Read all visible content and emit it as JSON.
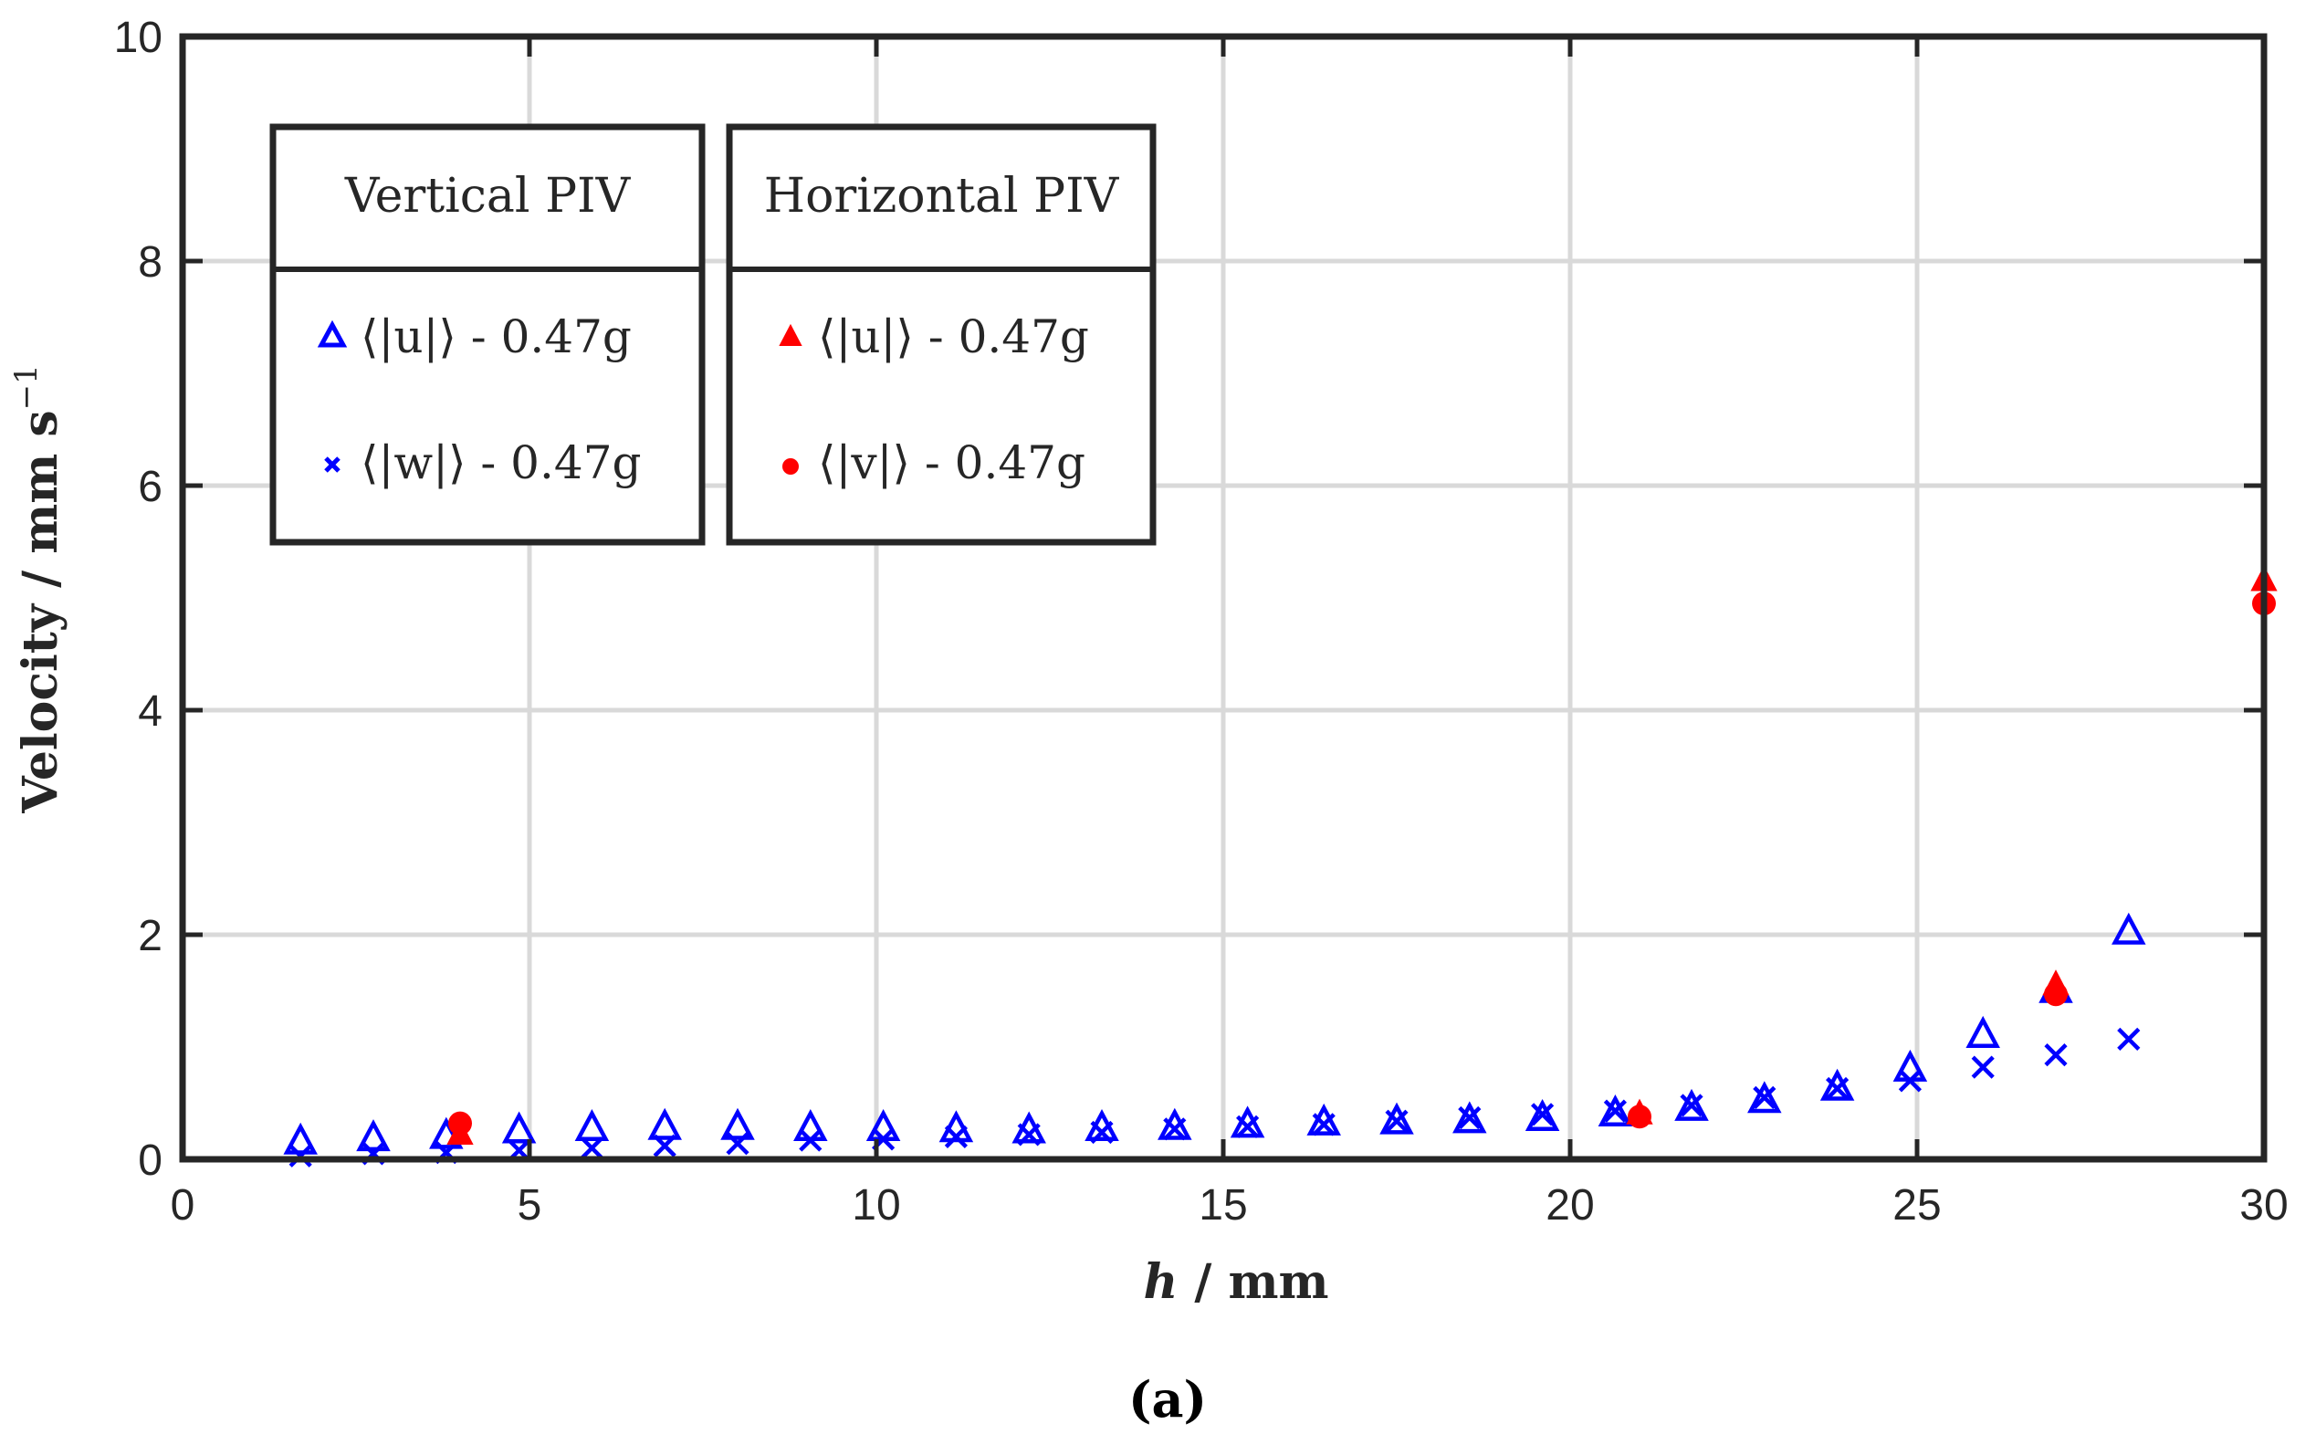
{
  "chart_data": {
    "type": "scatter",
    "xlabel": {
      "var": "h",
      "rest": " / mm"
    },
    "ylabel": {
      "main": "Velocity / mm s",
      "sup": "−1"
    },
    "xlim": [
      0,
      30
    ],
    "ylim": [
      0,
      10
    ],
    "xticks": [
      "0",
      "5",
      "10",
      "15",
      "20",
      "25",
      "30"
    ],
    "yticks": [
      "0",
      "2",
      "4",
      "6",
      "8",
      "10"
    ],
    "grid": true,
    "caption": "(a)",
    "legend_placement": "top-left",
    "legend_groups": [
      {
        "title": "Vertical PIV",
        "entries": [
          "⟨|u|⟩ - 0.47g",
          "⟨|w|⟩ - 0.47g"
        ]
      },
      {
        "title": "Horizontal PIV",
        "entries": [
          "⟨|u|⟩ - 0.47g",
          "⟨|v|⟩ - 0.47g"
        ]
      }
    ],
    "series": [
      {
        "name": "⟨|u|⟩ - 0.47g",
        "group": "Vertical PIV",
        "marker": "triangle-open",
        "color": "#0000ff",
        "x": [
          1.7,
          2.75,
          3.8,
          4.85,
          5.9,
          6.95,
          8.0,
          9.05,
          10.1,
          11.15,
          12.2,
          13.25,
          14.3,
          15.35,
          16.45,
          17.5,
          18.55,
          19.6,
          20.65,
          21.75,
          22.8,
          23.85,
          24.9,
          25.95,
          27.0,
          28.05
        ],
        "y": [
          0.15,
          0.18,
          0.2,
          0.25,
          0.27,
          0.28,
          0.28,
          0.27,
          0.27,
          0.26,
          0.25,
          0.27,
          0.28,
          0.3,
          0.32,
          0.33,
          0.34,
          0.36,
          0.4,
          0.45,
          0.52,
          0.63,
          0.8,
          1.1,
          1.5,
          2.02
        ]
      },
      {
        "name": "⟨|w|⟩ - 0.47g",
        "group": "Vertical PIV",
        "marker": "x",
        "color": "#0000ff",
        "x": [
          1.7,
          2.75,
          3.8,
          4.85,
          5.9,
          6.95,
          8.0,
          9.05,
          10.1,
          11.15,
          12.2,
          13.25,
          14.3,
          15.35,
          16.45,
          17.5,
          18.55,
          19.6,
          20.65,
          21.75,
          22.8,
          23.85,
          24.9,
          25.95,
          27.0,
          28.05
        ],
        "y": [
          0.03,
          0.05,
          0.06,
          0.08,
          0.1,
          0.12,
          0.14,
          0.17,
          0.18,
          0.2,
          0.22,
          0.24,
          0.27,
          0.29,
          0.31,
          0.34,
          0.37,
          0.4,
          0.43,
          0.48,
          0.55,
          0.63,
          0.7,
          0.82,
          0.93,
          1.07
        ]
      },
      {
        "name": "⟨|u|⟩ - 0.47g",
        "group": "Horizontal PIV",
        "marker": "triangle-filled",
        "color": "#ff0000",
        "x": [
          4.0,
          21.0,
          27.0,
          30.0
        ],
        "y": [
          0.22,
          0.4,
          1.55,
          5.15
        ]
      },
      {
        "name": "⟨|v|⟩ - 0.47g",
        "group": "Horizontal PIV",
        "marker": "circle-filled",
        "color": "#ff0000",
        "x": [
          4.0,
          21.0,
          27.0,
          30.0
        ],
        "y": [
          0.32,
          0.38,
          1.47,
          4.95
        ]
      }
    ]
  }
}
